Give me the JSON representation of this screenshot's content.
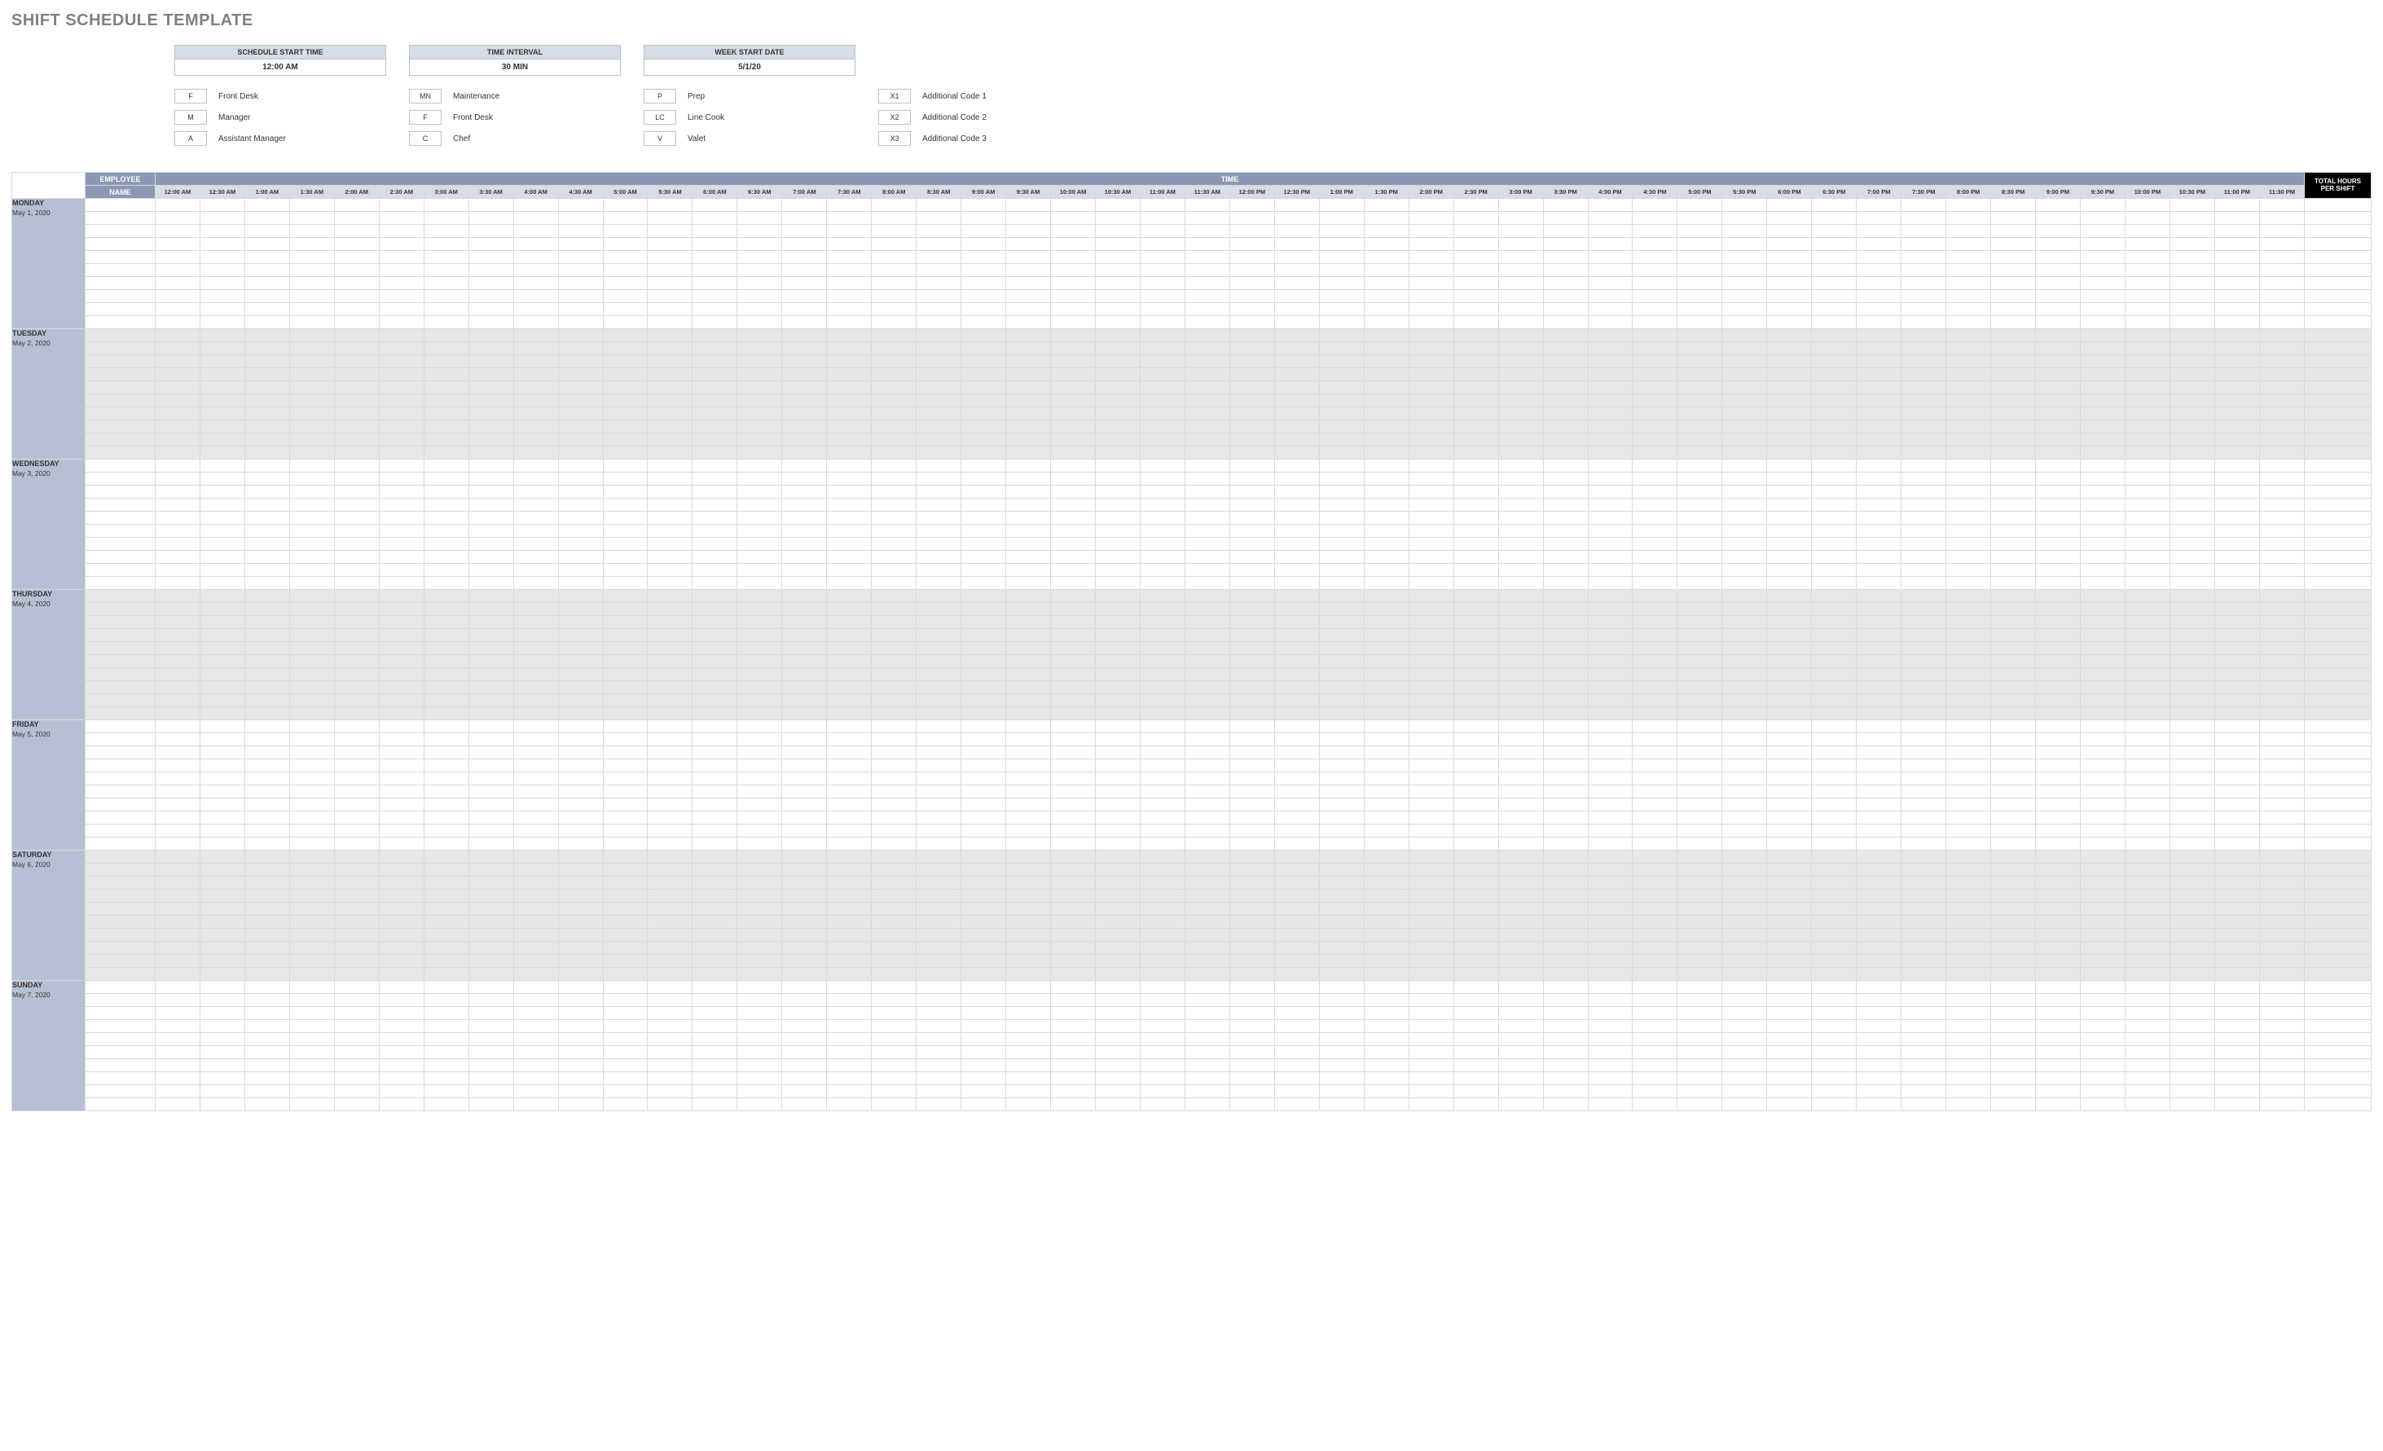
{
  "title": "SHIFT SCHEDULE TEMPLATE",
  "config": [
    {
      "label": "SCHEDULE START TIME",
      "value": "12:00 AM"
    },
    {
      "label": "TIME INTERVAL",
      "value": "30 MIN"
    },
    {
      "label": "WEEK START DATE",
      "value": "5/1/20"
    }
  ],
  "legend_columns": [
    [
      {
        "code": "F",
        "label": "Front Desk"
      },
      {
        "code": "M",
        "label": "Manager"
      },
      {
        "code": "A",
        "label": "Assistant Manager"
      }
    ],
    [
      {
        "code": "MN",
        "label": "Maintenance"
      },
      {
        "code": "F",
        "label": "Front Desk"
      },
      {
        "code": "C",
        "label": "Chef"
      }
    ],
    [
      {
        "code": "P",
        "label": "Prep"
      },
      {
        "code": "LC",
        "label": "Line Cook"
      },
      {
        "code": "V",
        "label": "Valet"
      }
    ],
    [
      {
        "code": "X1",
        "label": "Additional Code 1"
      },
      {
        "code": "X2",
        "label": "Additional Code 2"
      },
      {
        "code": "X3",
        "label": "Additional Code 3"
      }
    ]
  ],
  "header": {
    "employee": "EMPLOYEE",
    "name": "NAME",
    "time": "TIME",
    "total_l1": "TOTAL HOURS",
    "total_l2": "PER SHIFT"
  },
  "time_slots": [
    "12:00 AM",
    "12:30 AM",
    "1:00 AM",
    "1:30 AM",
    "2:00 AM",
    "2:30 AM",
    "3:00 AM",
    "3:30 AM",
    "4:00 AM",
    "4:30 AM",
    "5:00 AM",
    "5:30 AM",
    "6:00 AM",
    "6:30 AM",
    "7:00 AM",
    "7:30 AM",
    "8:00 AM",
    "8:30 AM",
    "9:00 AM",
    "9:30 AM",
    "10:00 AM",
    "10:30 AM",
    "11:00 AM",
    "11:30 AM",
    "12:00 PM",
    "12:30 PM",
    "1:00 PM",
    "1:30 PM",
    "2:00 PM",
    "2:30 PM",
    "3:00 PM",
    "3:30 PM",
    "4:00 PM",
    "4:30 PM",
    "5:00 PM",
    "5:30 PM",
    "6:00 PM",
    "6:30 PM",
    "7:00 PM",
    "7:30 PM",
    "8:00 PM",
    "8:30 PM",
    "9:00 PM",
    "9:30 PM",
    "10:00 PM",
    "10:30 PM",
    "11:00 PM",
    "11:30 PM"
  ],
  "days": [
    {
      "name": "MONDAY",
      "date": "May 1, 2020",
      "shaded": false,
      "rows": 10
    },
    {
      "name": "TUESDAY",
      "date": "May 2, 2020",
      "shaded": true,
      "rows": 10
    },
    {
      "name": "WEDNESDAY",
      "date": "May 3, 2020",
      "shaded": false,
      "rows": 10
    },
    {
      "name": "THURSDAY",
      "date": "May 4, 2020",
      "shaded": true,
      "rows": 10
    },
    {
      "name": "FRIDAY",
      "date": "May 5, 2020",
      "shaded": false,
      "rows": 10
    },
    {
      "name": "SATURDAY",
      "date": "May 6, 2020",
      "shaded": true,
      "rows": 10
    },
    {
      "name": "SUNDAY",
      "date": "May 7, 2020",
      "shaded": false,
      "rows": 10
    }
  ],
  "colors": {
    "header_dark": "#8b98b3",
    "header_light": "#d6dce8",
    "day_fill": "#b6c0d4",
    "shaded_row": "#e7e7e7",
    "total_head": "#000000",
    "border": "#d9d9d9"
  }
}
